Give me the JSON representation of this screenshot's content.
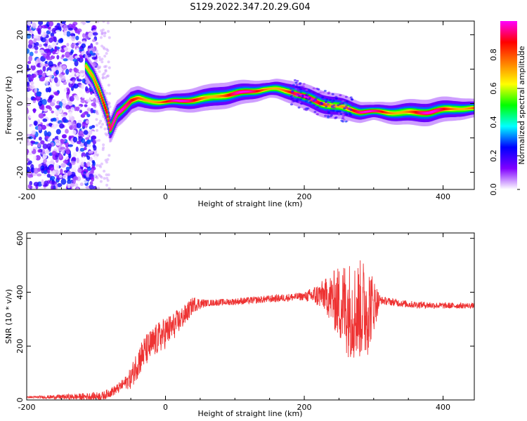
{
  "title": "S129.2022.347.20.29.G04",
  "chart_data": [
    {
      "type": "heatmap",
      "xlabel": "Height of straight line (km)",
      "ylabel": "Frequency (Hz)",
      "xlim": [
        -200,
        445
      ],
      "ylim": [
        -25,
        24
      ],
      "xticks": [
        -200,
        0,
        200,
        400
      ],
      "yticks": [
        -20,
        -10,
        0,
        10,
        20
      ],
      "colorbar": {
        "label": "Normalized spectral amplitude",
        "range": [
          0,
          1
        ],
        "ticks": [
          "0.0",
          "0.2",
          "0.4",
          "0.6",
          "0.8"
        ],
        "colors": [
          "#ffffff",
          "#8000ff",
          "#0000ff",
          "#00ffff",
          "#00ff00",
          "#ffff00",
          "#ff8000",
          "#ff0000",
          "#ff00ff"
        ]
      },
      "ridge": {
        "x": [
          -115,
          -105,
          -95,
          -85,
          -80,
          -70,
          -60,
          -50,
          -40,
          -30,
          -20,
          0,
          20,
          40,
          60,
          80,
          100,
          120,
          140,
          160,
          180,
          200,
          220,
          240,
          260,
          280,
          300,
          320,
          340,
          360,
          380,
          400,
          420,
          445
        ],
        "freq": [
          11,
          8,
          3,
          -3,
          -8,
          -3,
          -1,
          1,
          1.5,
          1,
          0.8,
          0.5,
          0.5,
          1,
          1.5,
          2.5,
          3,
          3.5,
          4,
          4,
          3.5,
          2,
          0.5,
          -0.5,
          -1.5,
          -2.5,
          -2.5,
          -2.5,
          -2.5,
          -2.5,
          -2.5,
          -2,
          -1.5,
          -1.5
        ]
      }
    },
    {
      "type": "line",
      "xlabel": "Height of straight line (km)",
      "ylabel": "SNR (10 * v/v)",
      "xlim": [
        -200,
        445
      ],
      "ylim": [
        0,
        620
      ],
      "xticks": [
        -200,
        0,
        200,
        400
      ],
      "yticks": [
        0,
        200,
        400,
        600
      ],
      "color": "#ee3333",
      "trend": {
        "x": [
          -200,
          -120,
          -90,
          -70,
          -50,
          -40,
          -30,
          -10,
          10,
          30,
          40,
          60,
          100,
          150,
          200,
          230,
          250,
          270,
          290,
          310,
          350,
          400,
          445
        ],
        "y": [
          10,
          12,
          15,
          40,
          80,
          140,
          180,
          230,
          270,
          320,
          355,
          360,
          365,
          375,
          385,
          390,
          360,
          330,
          340,
          370,
          355,
          350,
          350
        ]
      },
      "noise": {
        "x": [
          -200,
          -60,
          -40,
          0,
          40,
          60,
          200,
          230,
          260,
          290,
          310,
          445
        ],
        "amplitude": [
          3,
          20,
          60,
          60,
          30,
          12,
          15,
          60,
          180,
          190,
          15,
          10
        ]
      }
    }
  ]
}
